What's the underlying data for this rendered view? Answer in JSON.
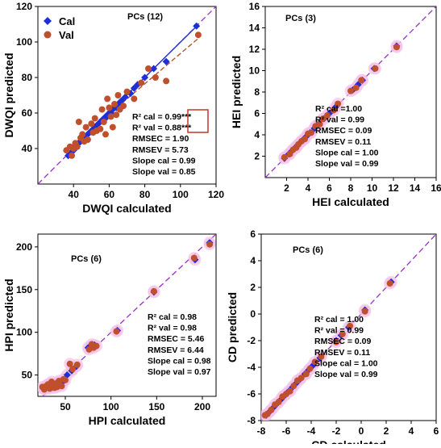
{
  "chart_data": [
    {
      "type": "scatter",
      "panel": "DWQI",
      "title": "PCs (12)",
      "xlabel": "DWQI calculated",
      "ylabel": "DWQI predicted",
      "xlim": [
        20,
        120
      ],
      "ylim": [
        20,
        120
      ],
      "xticks": [
        40,
        60,
        80,
        100,
        120
      ],
      "yticks": [
        40,
        60,
        80,
        100,
        120
      ],
      "legend": [
        "Cal",
        "Val"
      ],
      "legend_position": "top-left",
      "stats": [
        "R² cal = 0.99***",
        "R² val = 0.88***",
        "RMSEC = 1.90",
        "RMSEV = 5.73",
        "Slope cal = 0.99",
        "Slope val = 0.85"
      ],
      "series": [
        {
          "name": "Cal",
          "color": "#1f2fd6",
          "marker": "diamond",
          "x": [
            37,
            39,
            40,
            42,
            43,
            44,
            45,
            46,
            47,
            48,
            49,
            50,
            51,
            52,
            53,
            54,
            55,
            56,
            57,
            58,
            59,
            60,
            61,
            62,
            63,
            64,
            65,
            66,
            67,
            69,
            72,
            74,
            76,
            80,
            85,
            92,
            109
          ],
          "y": [
            36,
            38,
            39,
            41,
            43,
            44,
            45,
            46,
            46,
            48,
            49,
            50,
            50,
            52,
            53,
            54,
            55,
            56,
            56,
            58,
            58,
            60,
            60,
            62,
            63,
            63,
            65,
            66,
            67,
            69,
            71,
            74,
            76,
            80,
            85,
            89,
            109
          ]
        },
        {
          "name": "Val",
          "color": "#c0502d",
          "marker": "circle",
          "x": [
            36,
            38,
            39,
            40,
            41,
            42,
            43,
            44,
            45,
            46,
            47,
            48,
            50,
            51,
            52,
            53,
            55,
            56,
            57,
            58,
            59,
            60,
            61,
            62,
            63,
            64,
            65,
            66,
            68,
            70,
            74,
            78,
            82,
            86,
            92,
            110
          ],
          "y": [
            39,
            41,
            36,
            40,
            43,
            41,
            55,
            46,
            48,
            44,
            52,
            45,
            54,
            49,
            57,
            50,
            51,
            62,
            55,
            48,
            68,
            63,
            58,
            52,
            65,
            59,
            70,
            62,
            64,
            72,
            68,
            77,
            85,
            80,
            78,
            104
          ]
        }
      ]
    },
    {
      "type": "scatter",
      "panel": "HEI",
      "title": "PCs (3)",
      "xlabel": "HEI calculated",
      "ylabel": "HEI predicted",
      "xlim": [
        0,
        16
      ],
      "ylim": [
        0,
        16
      ],
      "xticks": [
        2,
        4,
        6,
        8,
        10,
        12,
        14,
        16
      ],
      "yticks": [
        2,
        4,
        6,
        8,
        10,
        12,
        14,
        16
      ],
      "stats": [
        "R² cal =1.00",
        "R² val = 0.99",
        "RMSEC = 0.09",
        "RMSEV = 0.11",
        "Slope cal = 1.00",
        "Slope val = 0.99"
      ],
      "series": [
        {
          "name": "Cal",
          "color": "#1f2fd6",
          "x": [
            1.8,
            2.2,
            2.5,
            2.8,
            3.0,
            3.3,
            3.6,
            3.9,
            4.2,
            4.6,
            5.0,
            5.5,
            6.0,
            6.6,
            8.2,
            8.7,
            9.1,
            10.2,
            12.3
          ],
          "y": [
            1.8,
            2.2,
            2.5,
            2.8,
            3.0,
            3.3,
            3.6,
            3.9,
            4.2,
            4.6,
            5.0,
            5.5,
            6.0,
            6.6,
            8.2,
            8.7,
            9.1,
            10.2,
            12.3
          ]
        },
        {
          "name": "Val",
          "color": "#c0502d",
          "x": [
            1.8,
            2.3,
            2.6,
            2.9,
            3.1,
            3.4,
            3.7,
            4.0,
            4.3,
            4.7,
            5.1,
            5.4,
            5.8,
            6.4,
            6.8,
            8.0,
            8.5,
            9.0,
            10.3,
            12.3
          ],
          "y": [
            1.9,
            2.2,
            2.6,
            2.8,
            3.1,
            3.4,
            3.6,
            4.1,
            4.2,
            4.8,
            5.0,
            5.5,
            5.8,
            6.3,
            6.9,
            8.1,
            8.4,
            9.1,
            10.2,
            12.2
          ]
        }
      ]
    },
    {
      "type": "scatter",
      "panel": "HPI",
      "title": "PCs (6)",
      "xlabel": "HPI calculated",
      "ylabel": "HPI predicted",
      "xlim": [
        20,
        215
      ],
      "ylim": [
        25,
        215
      ],
      "xticks": [
        50,
        100,
        150,
        200
      ],
      "yticks": [
        50,
        100,
        150,
        200
      ],
      "stats": [
        "R² cal = 0.98",
        "R² val = 0.98",
        "RMSEC = 5.46",
        "RMSEV = 6.44",
        "Slope cal = 0.98",
        "Slope val = 0.97"
      ],
      "series": [
        {
          "name": "Cal",
          "color": "#1f2fd6",
          "x": [
            26,
            28,
            30,
            32,
            34,
            36,
            38,
            40,
            42,
            45,
            48,
            52,
            57,
            62,
            75,
            78,
            80,
            82,
            107,
            147,
            192,
            208
          ],
          "y": [
            34,
            36,
            38,
            35,
            40,
            37,
            39,
            36,
            41,
            40,
            43,
            50,
            55,
            60,
            82,
            84,
            83,
            85,
            102,
            147,
            185,
            205
          ]
        },
        {
          "name": "Val",
          "color": "#c0502d",
          "x": [
            25,
            27,
            29,
            31,
            33,
            35,
            36,
            38,
            40,
            41,
            43,
            44,
            46,
            48,
            50,
            55,
            58,
            63,
            76,
            79,
            81,
            84,
            106,
            147,
            191,
            208
          ],
          "y": [
            36,
            33,
            37,
            39,
            34,
            42,
            38,
            35,
            40,
            36,
            43,
            38,
            37,
            45,
            44,
            63,
            57,
            62,
            80,
            86,
            82,
            84,
            101,
            148,
            187,
            203
          ]
        }
      ]
    },
    {
      "type": "scatter",
      "panel": "CD",
      "title": "PCs (6)",
      "xlabel": "CD calculated",
      "ylabel": "CD predicted",
      "xlim": [
        -8,
        6
      ],
      "ylim": [
        -8,
        6
      ],
      "xticks": [
        -8,
        -6,
        -4,
        -2,
        0,
        2,
        4,
        6
      ],
      "yticks": [
        -8,
        -6,
        -4,
        -2,
        0,
        2,
        4,
        6
      ],
      "stats": [
        "R² cal = 1.00",
        "R² val = 0.99",
        "RMSEC = 0.09",
        "RMSEV = 0.11",
        "Slope cal = 1.00",
        "Slope val = 0.99"
      ],
      "series": [
        {
          "name": "Cal",
          "color": "#1f2fd6",
          "x": [
            -7.6,
            -7.3,
            -7.0,
            -6.7,
            -6.4,
            -6.1,
            -5.8,
            -5.5,
            -5.2,
            -4.9,
            -4.5,
            -4.2,
            -3.9,
            -3.3,
            -2.0,
            -1.6,
            -1.0,
            0.3,
            2.4
          ],
          "y": [
            -7.6,
            -7.3,
            -7.0,
            -6.7,
            -6.4,
            -6.1,
            -5.8,
            -5.5,
            -5.2,
            -4.9,
            -4.5,
            -4.2,
            -3.9,
            -3.3,
            -2.0,
            -1.6,
            -1.0,
            0.3,
            2.4
          ]
        },
        {
          "name": "Val",
          "color": "#c0502d",
          "x": [
            -7.7,
            -7.5,
            -7.2,
            -6.9,
            -6.6,
            -6.3,
            -6.0,
            -5.7,
            -5.4,
            -5.1,
            -4.8,
            -4.4,
            -4.1,
            -3.7,
            -3.2,
            -2.0,
            -1.5,
            -0.9,
            0.3,
            2.3
          ],
          "y": [
            -7.6,
            -7.5,
            -7.2,
            -6.8,
            -6.6,
            -6.2,
            -6.0,
            -5.8,
            -5.4,
            -5.0,
            -4.8,
            -4.5,
            -4.1,
            -3.6,
            -3.2,
            -2.1,
            -1.5,
            -0.9,
            0.2,
            2.3
          ]
        }
      ]
    }
  ]
}
